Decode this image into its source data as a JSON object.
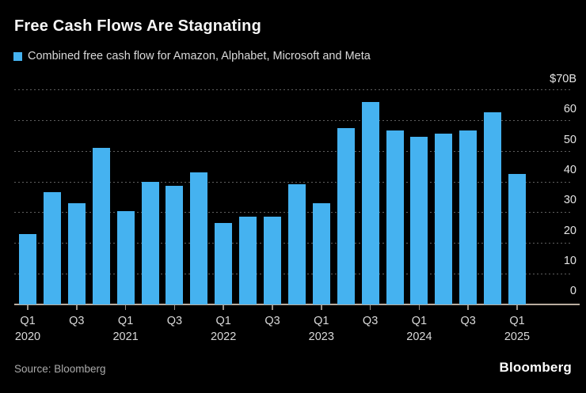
{
  "title": "Free Cash Flows Are Stagnating",
  "legend": {
    "label": "Combined free cash flow for Amazon, Alphabet, Microsoft and Meta"
  },
  "source": "Source: Bloomberg",
  "brand": "Bloomberg",
  "colors": {
    "background": "#000000",
    "bar": "#45b2f0",
    "grid_dots": "#5f5f5f",
    "axis_line": "#b9ad9f",
    "tick": "#9b9288",
    "title_text": "#f7f7f7",
    "legend_text": "#d9d9d9",
    "axis_label_text": "#e4e4e4",
    "source_text": "#ababab",
    "brand_text": "#ffffff"
  },
  "chart_data": {
    "type": "bar",
    "title": "Free Cash Flows Are Stagnating",
    "legend_entry": "Combined free cash flow for Amazon, Alphabet, Microsoft and Meta",
    "categories": [
      "Q1 2020",
      "Q2 2020",
      "Q3 2020",
      "Q4 2020",
      "Q1 2021",
      "Q2 2021",
      "Q3 2021",
      "Q4 2021",
      "Q1 2022",
      "Q2 2022",
      "Q3 2022",
      "Q4 2022",
      "Q1 2023",
      "Q2 2023",
      "Q3 2023",
      "Q4 2023",
      "Q1 2024",
      "Q2 2024",
      "Q3 2024",
      "Q4 2024",
      "Q1 2025"
    ],
    "values": [
      23,
      36.5,
      33,
      51,
      30.5,
      40,
      38.5,
      43,
      26.5,
      28.5,
      28.5,
      39,
      33,
      57.5,
      66,
      56.5,
      54.5,
      55.5,
      56.5,
      62.5,
      42.5
    ],
    "unit": "billion USD",
    "ylim": [
      0,
      70
    ],
    "y_tick_labels": [
      "$70B",
      "60",
      "50",
      "40",
      "30",
      "20",
      "10",
      "0"
    ],
    "y_tick_values": [
      70,
      60,
      50,
      40,
      30,
      20,
      10,
      0
    ],
    "y_axis_side": "right",
    "grid": "horizontal-dotted",
    "x_tick_labels": [
      {
        "quarter": "Q1",
        "year": "2020"
      },
      {
        "quarter": "Q3",
        "year": ""
      },
      {
        "quarter": "Q1",
        "year": "2021"
      },
      {
        "quarter": "Q3",
        "year": ""
      },
      {
        "quarter": "Q1",
        "year": "2022"
      },
      {
        "quarter": "Q3",
        "year": ""
      },
      {
        "quarter": "Q1",
        "year": "2023"
      },
      {
        "quarter": "Q3",
        "year": ""
      },
      {
        "quarter": "Q1",
        "year": "2024"
      },
      {
        "quarter": "Q3",
        "year": ""
      },
      {
        "quarter": "Q1",
        "year": "2025"
      }
    ],
    "legend_position": "top-left"
  }
}
